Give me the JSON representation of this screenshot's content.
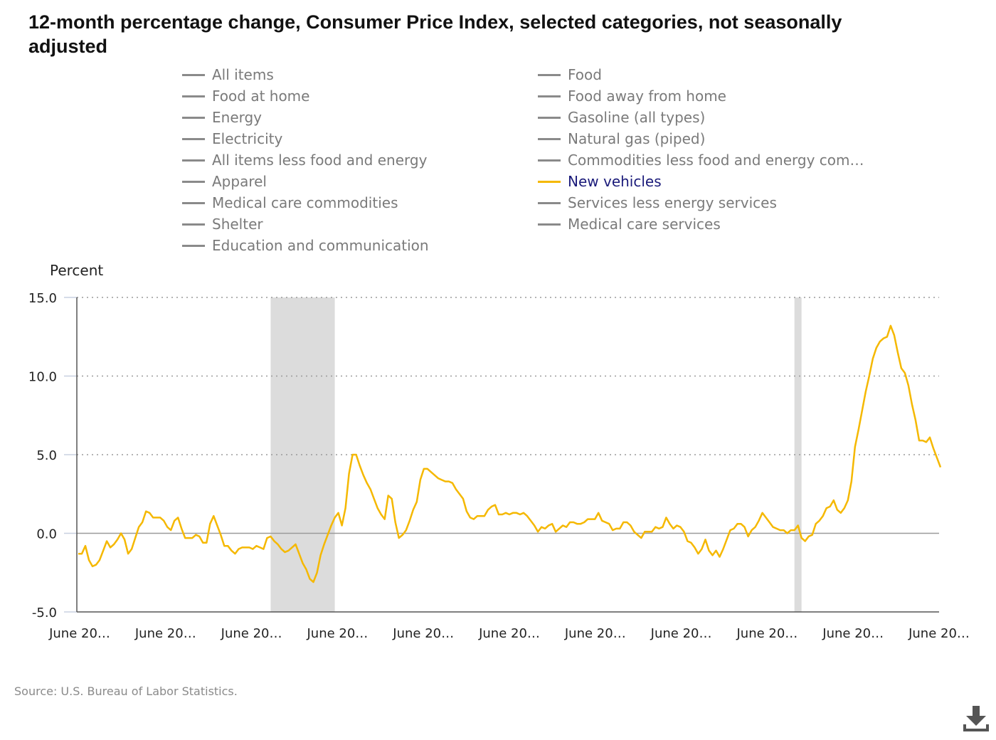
{
  "title": "12-month percentage change, Consumer Price Index, selected categories, not seasonally adjusted",
  "legend": [
    {
      "label": "All items",
      "active": false
    },
    {
      "label": "Food",
      "active": false
    },
    {
      "label": "Food at home",
      "active": false
    },
    {
      "label": "Food away from home",
      "active": false
    },
    {
      "label": "Energy",
      "active": false
    },
    {
      "label": "Gasoline (all types)",
      "active": false
    },
    {
      "label": "Electricity",
      "active": false
    },
    {
      "label": "Natural gas (piped)",
      "active": false
    },
    {
      "label": "All items less food and energy",
      "active": false
    },
    {
      "label": "Commodities less food and energy com…",
      "active": false
    },
    {
      "label": "Apparel",
      "active": false
    },
    {
      "label": "New vehicles",
      "active": true
    },
    {
      "label": "Medical care commodities",
      "active": false
    },
    {
      "label": "Services less energy services",
      "active": false
    },
    {
      "label": "Shelter",
      "active": false
    },
    {
      "label": "Medical care services",
      "active": false
    },
    {
      "label": "Education and communication",
      "active": false
    }
  ],
  "source": "Source: U.S. Bureau of Labor Statistics.",
  "download_icon": "download-icon",
  "chart_data": {
    "type": "line",
    "ylabel": "Percent",
    "xlabel": "",
    "ylim": [
      -5.0,
      15.0
    ],
    "yticks": [
      "15.0",
      "10.0",
      "5.0",
      "0.0",
      "-5.0"
    ],
    "ytick_values": [
      15,
      10,
      5,
      0,
      -5
    ],
    "xticks": [
      "June 20…",
      "June 20…",
      "June 20…",
      "June 20…",
      "June 20…",
      "June 20…",
      "June 20…",
      "June 20…",
      "June 20…",
      "June 20…",
      "June 20…"
    ],
    "grid": "horizontal dotted",
    "series_color": "#f5b800",
    "recession_shading": [
      [
        54,
        72
      ],
      [
        201,
        203
      ]
    ],
    "series": [
      {
        "name": "New vehicles",
        "values": [
          -1.3,
          -1.3,
          -0.8,
          -1.7,
          -2.1,
          -2.0,
          -1.7,
          -1.1,
          -0.5,
          -0.9,
          -0.7,
          -0.4,
          0.0,
          -0.4,
          -1.3,
          -1.0,
          -0.3,
          0.4,
          0.7,
          1.4,
          1.3,
          1.0,
          1.0,
          1.0,
          0.8,
          0.4,
          0.2,
          0.8,
          1.0,
          0.3,
          -0.3,
          -0.3,
          -0.3,
          -0.1,
          -0.2,
          -0.6,
          -0.6,
          0.6,
          1.1,
          0.5,
          -0.1,
          -0.8,
          -0.8,
          -1.1,
          -1.3,
          -1.0,
          -0.9,
          -0.9,
          -0.9,
          -1.0,
          -0.8,
          -0.9,
          -1.0,
          -0.3,
          -0.2,
          -0.5,
          -0.7,
          -1.0,
          -1.2,
          -1.1,
          -0.9,
          -0.7,
          -1.3,
          -1.9,
          -2.3,
          -2.9,
          -3.1,
          -2.5,
          -1.4,
          -0.7,
          -0.1,
          0.5,
          1.0,
          1.3,
          0.5,
          1.6,
          3.8,
          5.0,
          5.0,
          4.3,
          3.7,
          3.2,
          2.8,
          2.2,
          1.6,
          1.2,
          0.9,
          2.4,
          2.2,
          0.7,
          -0.3,
          -0.1,
          0.2,
          0.8,
          1.5,
          2.0,
          3.4,
          4.1,
          4.1,
          3.9,
          3.7,
          3.5,
          3.4,
          3.3,
          3.3,
          3.2,
          2.8,
          2.5,
          2.2,
          1.4,
          1.0,
          0.9,
          1.1,
          1.1,
          1.1,
          1.5,
          1.7,
          1.8,
          1.2,
          1.2,
          1.3,
          1.2,
          1.3,
          1.3,
          1.2,
          1.3,
          1.1,
          0.8,
          0.5,
          0.1,
          0.4,
          0.3,
          0.5,
          0.6,
          0.1,
          0.3,
          0.5,
          0.4,
          0.7,
          0.7,
          0.6,
          0.6,
          0.7,
          0.9,
          0.9,
          0.9,
          1.3,
          0.8,
          0.7,
          0.6,
          0.2,
          0.3,
          0.3,
          0.7,
          0.7,
          0.5,
          0.1,
          -0.1,
          -0.3,
          0.1,
          0.1,
          0.1,
          0.4,
          0.3,
          0.4,
          1.0,
          0.6,
          0.3,
          0.5,
          0.4,
          0.1,
          -0.5,
          -0.6,
          -0.9,
          -1.3,
          -1.0,
          -0.4,
          -1.1,
          -1.4,
          -1.1,
          -1.5,
          -1.0,
          -0.4,
          0.2,
          0.3,
          0.6,
          0.6,
          0.4,
          -0.2,
          0.2,
          0.4,
          0.8,
          1.3,
          1.0,
          0.7,
          0.4,
          0.3,
          0.2,
          0.2,
          0.0,
          0.2,
          0.2,
          0.5,
          -0.3,
          -0.5,
          -0.2,
          -0.1,
          0.6,
          0.8,
          1.1,
          1.6,
          1.7,
          2.1,
          1.5,
          1.3,
          1.6,
          2.1,
          3.3,
          5.5,
          6.6,
          7.8,
          9.0,
          10.0,
          11.1,
          11.8,
          12.2,
          12.4,
          12.5,
          13.2,
          12.6,
          11.5,
          10.5,
          10.2,
          9.4,
          8.2,
          7.2,
          5.9,
          5.9,
          5.8,
          6.1,
          5.4,
          4.8,
          4.2
        ]
      }
    ]
  }
}
